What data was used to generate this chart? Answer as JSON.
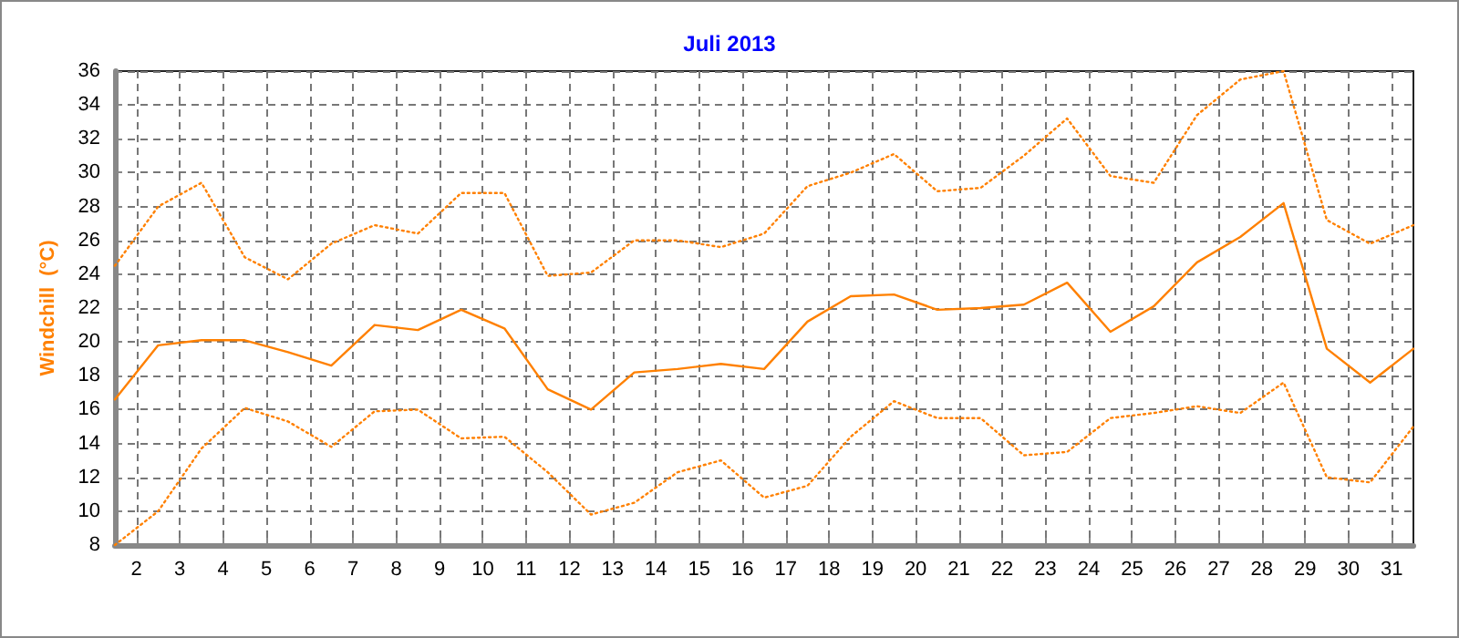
{
  "chart_data": {
    "type": "line",
    "title": "Juli 2013",
    "ylabel": "Windchill  (°C)",
    "x": [
      1.5,
      2.5,
      3.5,
      4.5,
      5.5,
      6.5,
      7.5,
      8.5,
      9.5,
      10.5,
      11.5,
      12.5,
      13.5,
      14.5,
      15.5,
      16.5,
      17.5,
      18.5,
      19.5,
      20.5,
      21.5,
      22.5,
      23.5,
      24.5,
      25.5,
      26.5,
      27.5,
      28.5,
      29.5,
      30.5,
      31.5
    ],
    "series": [
      {
        "color": "#ff8000",
        "line_style": "dotted",
        "values": [
          24.5,
          28,
          29.4,
          25,
          23.7,
          25.8,
          26.9,
          26.4,
          28.8,
          28.8,
          23.9,
          24.1,
          26,
          26,
          25.6,
          26.4,
          29.2,
          30,
          31.1,
          28.9,
          29.1,
          31,
          33.2,
          29.8,
          29.4,
          33.4,
          35.5,
          36,
          27.2,
          25.8,
          26.9
        ]
      },
      {
        "color": "#ff8000",
        "line_style": "solid",
        "values": [
          16.6,
          19.8,
          20.1,
          20.1,
          19.4,
          18.6,
          21,
          20.7,
          21.9,
          20.8,
          17.2,
          16,
          18.2,
          18.4,
          18.7,
          18.4,
          21.2,
          22.7,
          22.8,
          21.9,
          22,
          22.2,
          23.5,
          20.6,
          22.1,
          24.7,
          26.2,
          28.2,
          19.6,
          17.6,
          19.6
        ]
      },
      {
        "color": "#ff8000",
        "line_style": "dotted",
        "values": [
          8,
          10,
          13.7,
          16.1,
          15.3,
          13.8,
          15.9,
          16,
          14.3,
          14.4,
          12.3,
          9.8,
          10.5,
          12.3,
          13,
          10.8,
          11.5,
          14.4,
          16.5,
          15.5,
          15.5,
          13.3,
          13.5,
          15.5,
          15.8,
          16.2,
          15.8,
          17.6,
          12,
          11.7,
          15
        ]
      }
    ],
    "xlim": [
      1.5,
      31.5
    ],
    "xticks": [
      2,
      3,
      4,
      5,
      6,
      7,
      8,
      9,
      10,
      11,
      12,
      13,
      14,
      15,
      16,
      17,
      18,
      19,
      20,
      21,
      22,
      23,
      24,
      25,
      26,
      27,
      28,
      29,
      30,
      31
    ],
    "ylim": [
      8,
      36
    ],
    "yticks": [
      8,
      10,
      12,
      14,
      16,
      18,
      20,
      22,
      24,
      26,
      28,
      30,
      32,
      34,
      36
    ],
    "grid": true,
    "marker": "none"
  }
}
